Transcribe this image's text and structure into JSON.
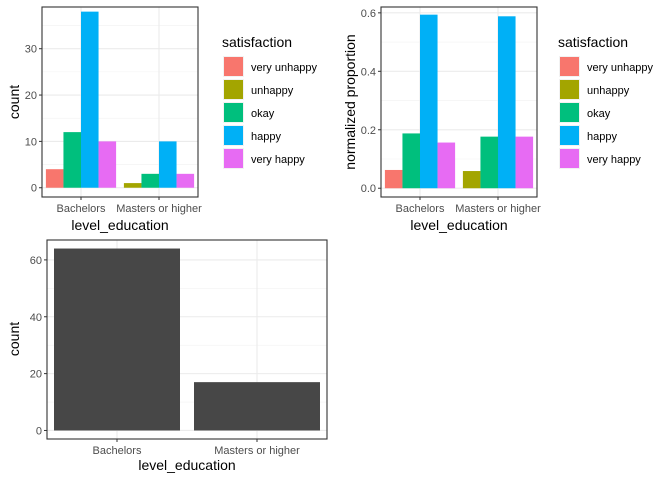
{
  "chart_data": [
    {
      "type": "bar",
      "categories": [
        "Bachelors",
        "Masters or higher"
      ],
      "series": [
        {
          "name": "very unhappy",
          "values": [
            4,
            null
          ]
        },
        {
          "name": "unhappy",
          "values": [
            null,
            1
          ]
        },
        {
          "name": "okay",
          "values": [
            12,
            3
          ]
        },
        {
          "name": "happy",
          "values": [
            38,
            10
          ]
        },
        {
          "name": "very happy",
          "values": [
            10,
            3
          ]
        }
      ],
      "colors": [
        "#F8766D",
        "#A3A500",
        "#00BF7D",
        "#00B0F6",
        "#E76BF3"
      ],
      "xlabel": "level_education",
      "ylabel": "count",
      "ylim": [
        -2,
        39
      ],
      "yticks": [
        0,
        10,
        20,
        30
      ],
      "ytick_labels": [
        "0",
        "10",
        "20",
        "30"
      ],
      "legend_title": "satisfaction",
      "legend_position": "right",
      "grid": true
    },
    {
      "type": "bar",
      "categories": [
        "Bachelors",
        "Masters or higher"
      ],
      "series": [
        {
          "name": "very unhappy",
          "values": [
            0.0625,
            null
          ]
        },
        {
          "name": "unhappy",
          "values": [
            null,
            0.0588
          ]
        },
        {
          "name": "okay",
          "values": [
            0.1875,
            0.1765
          ]
        },
        {
          "name": "happy",
          "values": [
            0.5938,
            0.5882
          ]
        },
        {
          "name": "very happy",
          "values": [
            0.1563,
            0.1765
          ]
        }
      ],
      "colors": [
        "#F8766D",
        "#A3A500",
        "#00BF7D",
        "#00B0F6",
        "#E76BF3"
      ],
      "xlabel": "level_education",
      "ylabel": "normalized proportion",
      "ylim": [
        -0.03,
        0.62
      ],
      "yticks": [
        0,
        0.2,
        0.4,
        0.6
      ],
      "ytick_labels": [
        "0.0",
        "0.2",
        "0.4",
        "0.6"
      ],
      "legend_title": "satisfaction",
      "legend_position": "right",
      "grid": true
    },
    {
      "type": "bar",
      "categories": [
        "Bachelors",
        "Masters or higher"
      ],
      "values": [
        64,
        17
      ],
      "color": "#474747",
      "xlabel": "level_education",
      "ylabel": "count",
      "ylim": [
        -3,
        67
      ],
      "yticks": [
        0,
        20,
        40,
        60
      ],
      "ytick_labels": [
        "0",
        "20",
        "40",
        "60"
      ],
      "grid": true
    }
  ]
}
